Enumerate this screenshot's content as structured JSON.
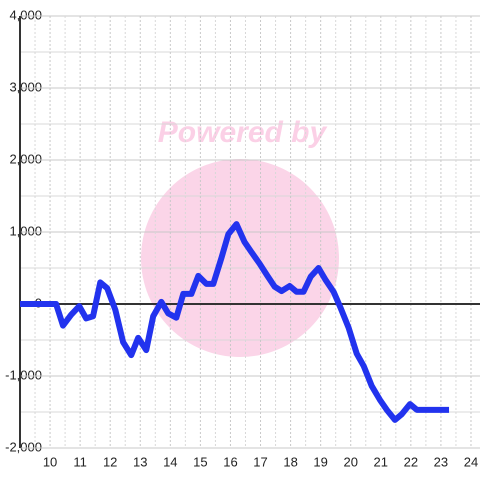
{
  "chart_data": {
    "type": "line",
    "watermark": "Powered by",
    "x": [
      9,
      10.2,
      10.43,
      10.7,
      10.97,
      11.2,
      11.43,
      11.67,
      11.9,
      12.17,
      12.43,
      12.7,
      12.93,
      13.2,
      13.43,
      13.7,
      13.93,
      14.2,
      14.43,
      14.7,
      14.93,
      15.2,
      15.43,
      15.7,
      15.93,
      16.2,
      16.47,
      16.7,
      16.97,
      17.23,
      17.47,
      17.7,
      17.97,
      18.2,
      18.43,
      18.67,
      18.93,
      19.17,
      19.43,
      19.67,
      19.93,
      20.2,
      20.43,
      20.7,
      20.97,
      21.2,
      21.47,
      21.7,
      21.97,
      22.2,
      23.27
    ],
    "series": [
      {
        "color": "#2233ee",
        "values": [
          0,
          0,
          -300,
          -150,
          -30,
          -200,
          -170,
          300,
          220,
          -80,
          -530,
          -710,
          -470,
          -640,
          -170,
          30,
          -130,
          -190,
          140,
          140,
          390,
          280,
          280,
          640,
          970,
          1110,
          860,
          720,
          560,
          390,
          240,
          180,
          250,
          170,
          170,
          380,
          500,
          330,
          170,
          -60,
          -330,
          -690,
          -860,
          -1140,
          -1330,
          -1470,
          -1610,
          -1530,
          -1390,
          -1470,
          -1470
        ]
      }
    ],
    "xlim": [
      9,
      24.3
    ],
    "xticks": [
      10,
      11,
      12,
      13,
      14,
      15,
      16,
      17,
      18,
      19,
      20,
      21,
      22,
      23,
      24
    ],
    "ylim": [
      -2000,
      4000
    ],
    "yticks": [
      {
        "value": -2000,
        "label": "-2,000"
      },
      {
        "value": -1000,
        "label": "-1,000"
      },
      0,
      {
        "value": 1000,
        "label": "1,000"
      },
      {
        "value": 2000,
        "label": "2,000"
      },
      {
        "value": 3000,
        "label": "3,000"
      },
      {
        "value": 4000,
        "label": "4,000"
      }
    ],
    "grid": true
  }
}
